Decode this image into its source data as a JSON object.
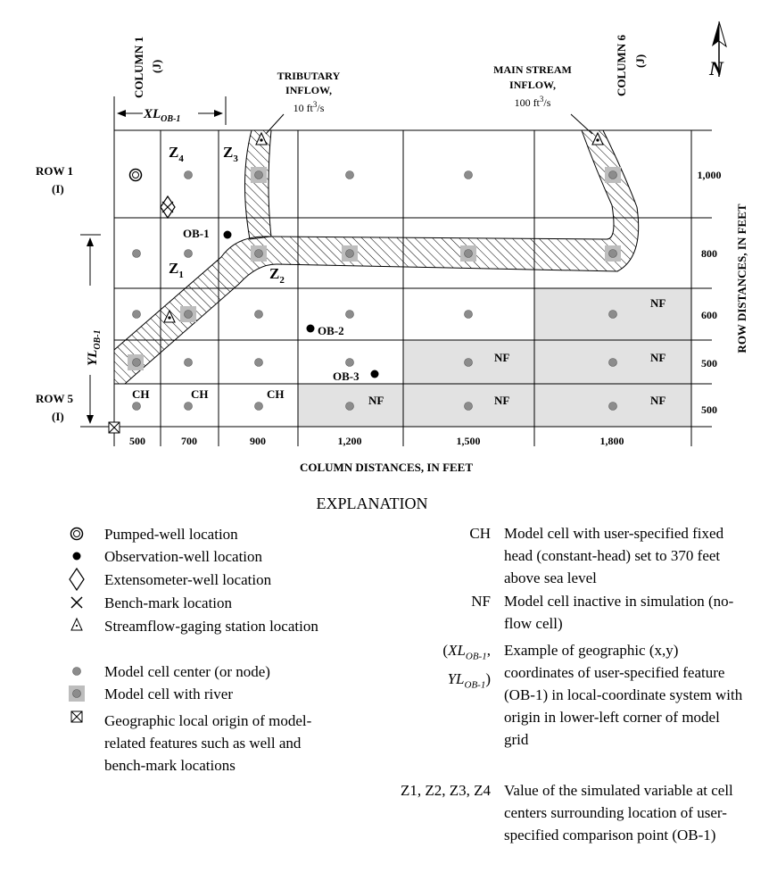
{
  "labels": {
    "column1": "COLUMN 1",
    "column1_sub": "(J)",
    "column6": "COLUMN 6",
    "column6_sub": "(J)",
    "row1": "ROW 1",
    "row1_sub": "(I)",
    "row5": "ROW 5",
    "row5_sub": "(I)",
    "xl": "XL",
    "xl_sub": "OB-1",
    "yl": "YL",
    "yl_sub": "OB-1",
    "tributary_l1": "TRIBUTARY",
    "tributary_l2": "INFLOW,",
    "tributary_l3": "10 ft",
    "tributary_l3_sup": "3",
    "tributary_l3_end": "/s",
    "main_l1": "MAIN STREAM",
    "main_l2": "INFLOW,",
    "main_l3": "100 ft",
    "main_l3_sup": "3",
    "main_l3_end": "/s",
    "north": "N",
    "column_distances": "COLUMN DISTANCES, IN FEET",
    "row_distances": "ROW DISTANCES, IN FEET",
    "ob1": "OB-1",
    "ob2": "OB-2",
    "ob3": "OB-3",
    "z": "Z",
    "z1_sub": "1",
    "z2_sub": "2",
    "z3_sub": "3",
    "z4_sub": "4",
    "ch": "CH",
    "nf": "NF"
  },
  "column_ticks": [
    "500",
    "700",
    "900",
    "1,200",
    "1,500",
    "1,800"
  ],
  "row_ticks": [
    "1,000",
    "800",
    "600",
    "500",
    "500"
  ],
  "explanation": {
    "title": "EXPLANATION",
    "left_items": [
      {
        "icon": "pumped-well-icon",
        "text": "Pumped-well location"
      },
      {
        "icon": "observation-well-icon",
        "text": "Observation-well location"
      },
      {
        "icon": "extensometer-well-icon",
        "text": "Extensometer-well location"
      },
      {
        "icon": "bench-mark-icon",
        "text": "Bench-mark location"
      },
      {
        "icon": "streamflow-gaging-station-icon",
        "text": "Streamflow-gaging station location"
      },
      {
        "icon": "model-cell-center-icon",
        "text": "Model cell center (or node)"
      },
      {
        "icon": "model-cell-river-icon",
        "text": "Model cell with river"
      },
      {
        "icon": "local-origin-icon",
        "text": "Geographic local origin of model-related features such as well and bench-mark locations"
      }
    ],
    "ch_key": "CH",
    "ch_text": "Model cell with user-specified fixed head (constant-head) set to 370 feet above sea level",
    "nf_key": "NF",
    "nf_text": "Model cell inactive in simulation (no-flow cell)",
    "coord_key_open": "(",
    "coord_key_xl": "XL",
    "coord_key_xl_sub": "OB-1",
    "coord_key_comma": ",",
    "coord_key_yl": "YL",
    "coord_key_yl_sub": "OB-1",
    "coord_key_close": ")",
    "coord_text": "Example of geographic (x,y) coordinates of user-specified feature (OB-1) in local-coordinate system with origin in lower-left corner of model grid",
    "z_key": "Z1, Z2, Z3, Z4",
    "z_text": "Value of the simulated variable at cell centers surrounding location of user-specified comparison point (OB-1)"
  },
  "colors": {
    "nf_fill": "#e2e2e2",
    "node_fill": "#8c8c8c",
    "river_cell_fill": "#bdbdbd",
    "line": "#000000"
  }
}
